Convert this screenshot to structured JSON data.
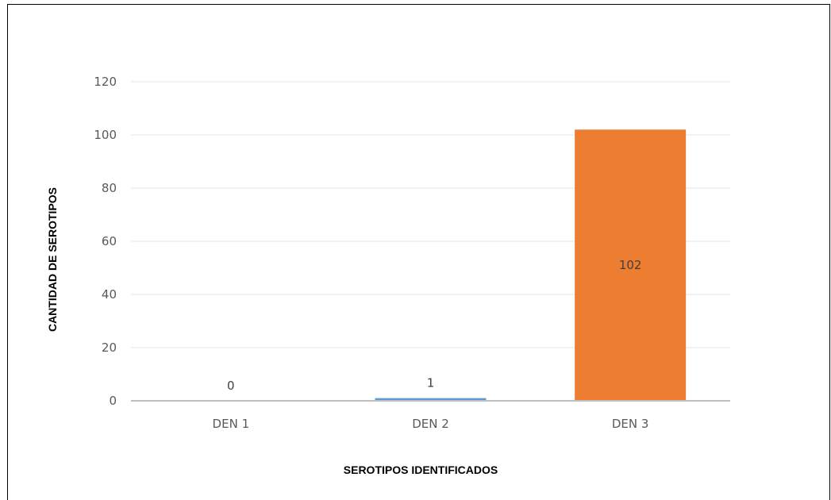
{
  "chart_data": {
    "type": "bar",
    "categories": [
      "DEN 1",
      "DEN 2",
      "DEN 3"
    ],
    "values": [
      0,
      1,
      102
    ],
    "data_labels": [
      "0",
      "1",
      "102"
    ],
    "bar_colors": [
      "#5B9BD5",
      "#5B9BD5",
      "#ED7D31"
    ],
    "xlabel": "SEROTIPOS IDENTIFICADOS",
    "ylabel": "CANTIDAD DE SEROTIPOS",
    "ylim": [
      0,
      120
    ],
    "yticks": [
      "0",
      "20",
      "40",
      "60",
      "80",
      "100",
      "120"
    ],
    "grid": true,
    "legend": "none"
  }
}
